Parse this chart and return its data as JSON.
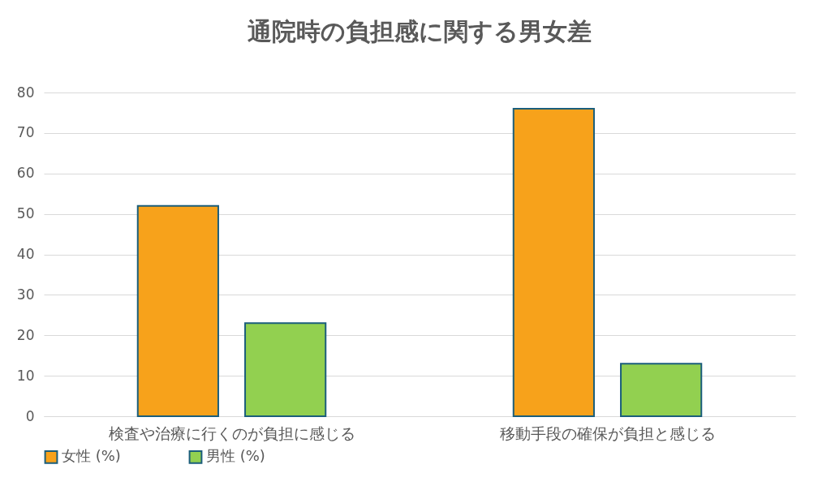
{
  "chart_data": {
    "type": "bar",
    "title": "通院時の負担感に関する男女差",
    "categories": [
      "検査や治療に行くのが負担に感じる",
      "移動手段の確保が負担と感じる"
    ],
    "series": [
      {
        "name": "女性 (%)",
        "color": "#f7a21b",
        "values": [
          52,
          76
        ]
      },
      {
        "name": "男性 (%)",
        "color": "#92d050",
        "values": [
          23,
          13
        ]
      }
    ],
    "ylim": [
      0,
      80
    ],
    "yticks": [
      0,
      10,
      20,
      30,
      40,
      50,
      60,
      70,
      80
    ],
    "grid": "y",
    "legend": "bottom"
  }
}
